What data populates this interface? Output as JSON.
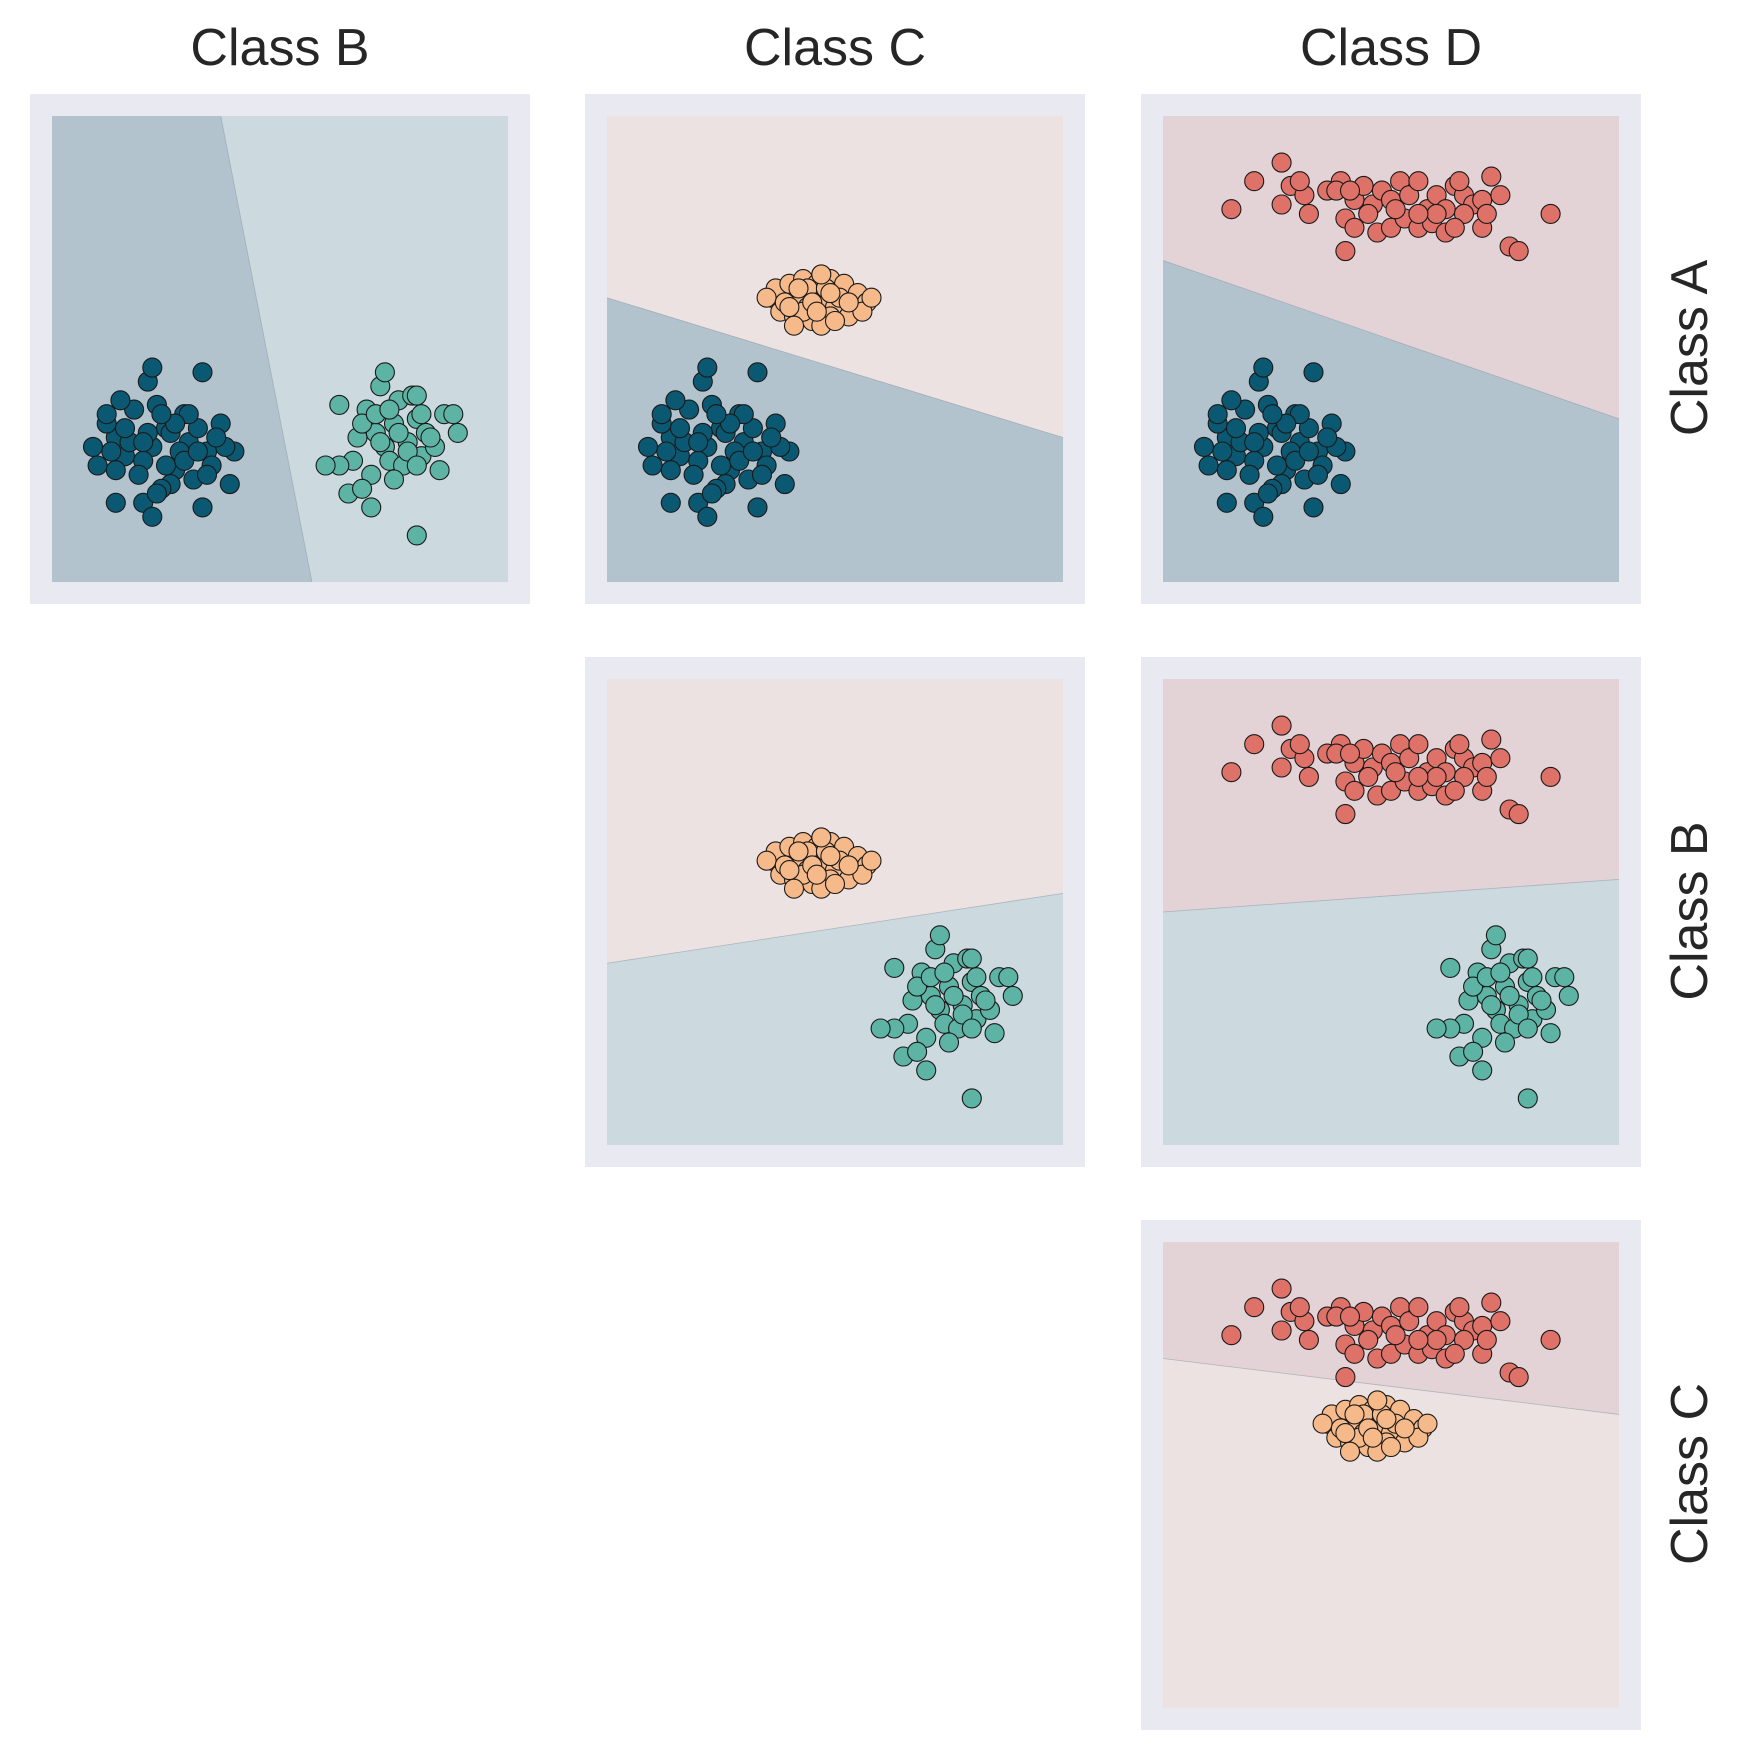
{
  "column_titles": [
    "Class B",
    "Class C",
    "Class D"
  ],
  "row_titles": [
    "Class A",
    "Class B",
    "Class C"
  ],
  "colors": {
    "Class A": "#0b5872",
    "Class B": "#5db3a4",
    "Class C": "#f6b98a",
    "Class D": "#de7168",
    "frame": "#e9e9f1",
    "region_A": "#b3c3cd",
    "region_B": "#ccd9df",
    "region_C": "#ede2e2",
    "region_D": "#e3d2d6"
  },
  "chart_data": {
    "type": "scatter",
    "description": "Pairwise linear decision boundaries (one-vs-one) between four clusters",
    "xlim": [
      0,
      10
    ],
    "ylim": [
      0,
      10
    ],
    "grid": false,
    "legend": "none",
    "clusters": {
      "Class A": [
        [
          1.0,
          2.5
        ],
        [
          1.4,
          3.1
        ],
        [
          1.6,
          2.7
        ],
        [
          1.2,
          3.4
        ],
        [
          2.2,
          2.9
        ],
        [
          2.5,
          3.3
        ],
        [
          2.0,
          2.6
        ],
        [
          2.7,
          2.4
        ],
        [
          1.8,
          3.7
        ],
        [
          3.0,
          3.0
        ],
        [
          3.2,
          3.3
        ],
        [
          3.4,
          2.8
        ],
        [
          2.6,
          2.1
        ],
        [
          3.7,
          3.4
        ],
        [
          4.0,
          2.8
        ],
        [
          1.5,
          3.9
        ],
        [
          2.1,
          4.3
        ],
        [
          2.9,
          3.6
        ],
        [
          3.5,
          2.5
        ],
        [
          2.3,
          3.8
        ],
        [
          1.9,
          2.3
        ],
        [
          2.4,
          2.0
        ],
        [
          1.3,
          2.8
        ],
        [
          1.7,
          3.0
        ],
        [
          2.8,
          2.8
        ],
        [
          3.1,
          2.2
        ],
        [
          3.8,
          2.9
        ],
        [
          2.0,
          1.7
        ],
        [
          2.2,
          1.4
        ],
        [
          2.3,
          1.9
        ],
        [
          3.3,
          1.6
        ],
        [
          1.4,
          2.4
        ],
        [
          2.6,
          3.2
        ],
        [
          3.0,
          3.6
        ],
        [
          3.6,
          3.1
        ],
        [
          1.2,
          3.6
        ],
        [
          0.9,
          2.9
        ],
        [
          2.5,
          2.5
        ],
        [
          3.4,
          2.3
        ],
        [
          1.6,
          3.3
        ],
        [
          2.2,
          4.6
        ],
        [
          3.3,
          4.5
        ],
        [
          2.7,
          3.4
        ],
        [
          1.4,
          1.7
        ],
        [
          3.9,
          2.1
        ],
        [
          2.1,
          3.2
        ],
        [
          2.9,
          2.6
        ],
        [
          3.2,
          2.8
        ],
        [
          2.4,
          3.6
        ],
        [
          2.0,
          3.0
        ]
      ],
      "Class B": [
        [
          6.3,
          3.8
        ],
        [
          6.7,
          3.1
        ],
        [
          6.9,
          3.7
        ],
        [
          7.1,
          3.2
        ],
        [
          7.3,
          2.9
        ],
        [
          7.5,
          3.4
        ],
        [
          7.8,
          3.0
        ],
        [
          8.0,
          3.5
        ],
        [
          8.2,
          3.2
        ],
        [
          7.6,
          3.9
        ],
        [
          7.2,
          4.2
        ],
        [
          6.6,
          2.6
        ],
        [
          7.0,
          2.3
        ],
        [
          7.4,
          2.6
        ],
        [
          7.7,
          2.5
        ],
        [
          8.1,
          2.7
        ],
        [
          8.4,
          2.9
        ],
        [
          8.6,
          3.6
        ],
        [
          8.9,
          3.2
        ],
        [
          7.9,
          4.0
        ],
        [
          7.5,
          2.2
        ],
        [
          7.0,
          1.6
        ],
        [
          6.5,
          1.9
        ],
        [
          7.3,
          4.5
        ],
        [
          8.1,
          3.6
        ],
        [
          6.3,
          2.5
        ],
        [
          6.8,
          3.4
        ],
        [
          7.6,
          3.2
        ],
        [
          8.3,
          3.1
        ],
        [
          8.8,
          3.6
        ],
        [
          6.8,
          2.0
        ],
        [
          7.1,
          3.6
        ],
        [
          7.4,
          3.7
        ],
        [
          7.8,
          2.8
        ],
        [
          8.0,
          1.0
        ],
        [
          8.5,
          2.4
        ],
        [
          8.0,
          2.5
        ],
        [
          7.2,
          3.0
        ],
        [
          6.0,
          2.5
        ],
        [
          8.0,
          4.0
        ]
      ],
      "Class C": [
        [
          3.6,
          6.1
        ],
        [
          3.8,
          5.8
        ],
        [
          4.0,
          6.2
        ],
        [
          4.2,
          6.0
        ],
        [
          4.4,
          5.9
        ],
        [
          4.6,
          6.1
        ],
        [
          4.8,
          6.0
        ],
        [
          5.0,
          5.9
        ],
        [
          5.2,
          6.2
        ],
        [
          5.4,
          6.0
        ],
        [
          3.7,
          6.3
        ],
        [
          4.0,
          6.4
        ],
        [
          4.3,
          6.5
        ],
        [
          4.6,
          6.4
        ],
        [
          4.9,
          6.5
        ],
        [
          5.2,
          6.4
        ],
        [
          4.1,
          5.7
        ],
        [
          4.5,
          5.6
        ],
        [
          4.9,
          5.7
        ],
        [
          5.3,
          5.7
        ],
        [
          4.7,
          5.5
        ],
        [
          4.3,
          5.8
        ],
        [
          4.4,
          6.3
        ],
        [
          4.8,
          6.3
        ],
        [
          5.1,
          6.1
        ],
        [
          5.5,
          6.2
        ],
        [
          5.7,
          6.0
        ],
        [
          3.5,
          6.1
        ],
        [
          4.1,
          5.5
        ],
        [
          5.6,
          5.8
        ],
        [
          4.5,
          6.0
        ],
        [
          4.9,
          6.2
        ],
        [
          4.2,
          6.3
        ],
        [
          5.0,
          5.6
        ],
        [
          3.9,
          6.0
        ],
        [
          5.8,
          6.1
        ],
        [
          5.3,
          6.0
        ],
        [
          4.6,
          5.8
        ],
        [
          4.0,
          5.9
        ],
        [
          4.7,
          6.6
        ]
      ],
      "Class D": [
        [
          1.5,
          8.0
        ],
        [
          2.6,
          9.0
        ],
        [
          2.6,
          8.1
        ],
        [
          2.8,
          8.5
        ],
        [
          3.1,
          8.3
        ],
        [
          3.0,
          8.6
        ],
        [
          3.6,
          8.4
        ],
        [
          3.9,
          8.6
        ],
        [
          4.2,
          8.2
        ],
        [
          4.4,
          8.5
        ],
        [
          4.6,
          8.1
        ],
        [
          4.8,
          8.4
        ],
        [
          5.0,
          8.2
        ],
        [
          5.2,
          8.6
        ],
        [
          5.4,
          8.3
        ],
        [
          5.6,
          8.6
        ],
        [
          5.8,
          8.0
        ],
        [
          6.0,
          8.3
        ],
        [
          6.2,
          8.0
        ],
        [
          6.4,
          8.5
        ],
        [
          6.6,
          8.3
        ],
        [
          6.8,
          8.1
        ],
        [
          7.0,
          8.2
        ],
        [
          7.2,
          8.7
        ],
        [
          7.4,
          8.3
        ],
        [
          7.6,
          7.2
        ],
        [
          7.8,
          7.1
        ],
        [
          4.0,
          7.8
        ],
        [
          4.2,
          7.6
        ],
        [
          4.5,
          7.9
        ],
        [
          4.7,
          7.5
        ],
        [
          5.0,
          7.6
        ],
        [
          5.3,
          7.8
        ],
        [
          5.6,
          7.6
        ],
        [
          5.9,
          7.7
        ],
        [
          6.2,
          7.5
        ],
        [
          6.6,
          7.9
        ],
        [
          7.0,
          7.6
        ],
        [
          8.5,
          7.9
        ],
        [
          4.0,
          7.1
        ],
        [
          3.8,
          8.4
        ],
        [
          4.1,
          8.4
        ],
        [
          5.1,
          8.0
        ],
        [
          6.0,
          7.9
        ],
        [
          6.5,
          8.6
        ],
        [
          7.1,
          7.9
        ],
        [
          2.0,
          8.6
        ],
        [
          3.2,
          7.9
        ],
        [
          5.6,
          7.9
        ],
        [
          6.4,
          7.6
        ]
      ]
    },
    "panels": [
      {
        "row": "Class A",
        "col": "Class B",
        "boundary": [
          [
            3.7,
            10
          ],
          [
            5.7,
            0
          ]
        ],
        "side1": "Class A",
        "side2": "Class B"
      },
      {
        "row": "Class A",
        "col": "Class C",
        "boundary": [
          [
            0,
            6.1
          ],
          [
            10,
            3.1
          ]
        ],
        "side1": "Class C",
        "side2": "Class A"
      },
      {
        "row": "Class A",
        "col": "Class D",
        "boundary": [
          [
            0,
            6.9
          ],
          [
            10,
            3.5
          ]
        ],
        "side1": "Class D",
        "side2": "Class A"
      },
      {
        "row": "Class B",
        "col": "Class C",
        "boundary": [
          [
            0,
            3.9
          ],
          [
            10,
            5.4
          ]
        ],
        "side1": "Class C",
        "side2": "Class B"
      },
      {
        "row": "Class B",
        "col": "Class D",
        "boundary": [
          [
            0,
            5.0
          ],
          [
            10,
            5.7
          ]
        ],
        "side1": "Class D",
        "side2": "Class B"
      },
      {
        "row": "Class C",
        "col": "Class D",
        "boundary": [
          [
            0,
            7.5
          ],
          [
            10,
            6.3
          ]
        ],
        "side1": "Class D",
        "side2": "Class C"
      }
    ]
  }
}
